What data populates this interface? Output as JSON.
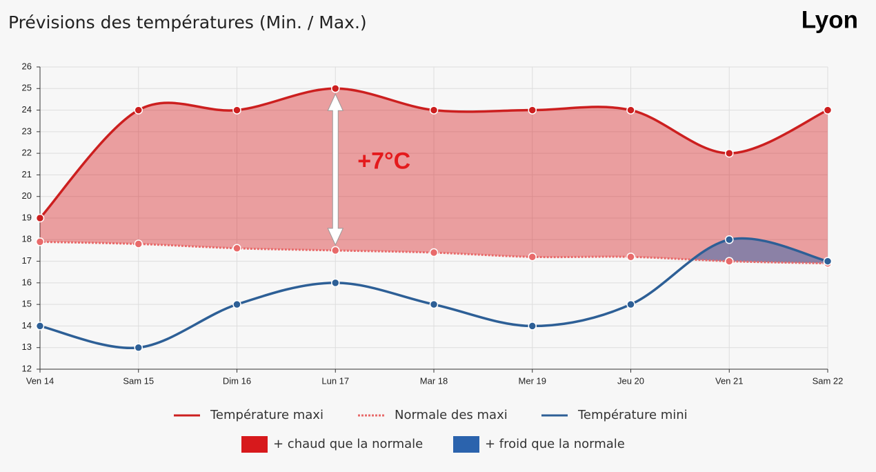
{
  "chart_data": {
    "type": "line",
    "title": "Prévisions des températures (Min. / Max.)",
    "location": "Lyon",
    "categories": [
      "Ven 14",
      "Sam 15",
      "Dim 16",
      "Lun 17",
      "Mar 18",
      "Mer 19",
      "Jeu 20",
      "Ven 21",
      "Sam 22"
    ],
    "series": [
      {
        "name": "Température maxi",
        "color": "#cc1f1f",
        "dashed": false,
        "values": [
          19,
          24,
          24,
          25,
          24,
          24,
          24,
          22,
          24
        ]
      },
      {
        "name": "Normale des maxi",
        "color": "#e86a6a",
        "dashed": true,
        "values": [
          17.9,
          17.8,
          17.6,
          17.5,
          17.4,
          17.2,
          17.2,
          17.0,
          16.9
        ]
      },
      {
        "name": "Température mini",
        "color": "#2d5f96",
        "dashed": false,
        "values": [
          14,
          13,
          15,
          16,
          15,
          14,
          15,
          18,
          17
        ]
      }
    ],
    "areas": [
      {
        "name": "+ chaud que la normale",
        "color": "#d7191c"
      },
      {
        "name": "+ froid que la normale",
        "color": "#2b63ad"
      }
    ],
    "annotation": "+7°C",
    "ylim": [
      12,
      26
    ],
    "yticks": [
      12,
      13,
      14,
      15,
      16,
      17,
      18,
      19,
      20,
      21,
      22,
      23,
      24,
      25,
      26
    ],
    "grid": true
  }
}
